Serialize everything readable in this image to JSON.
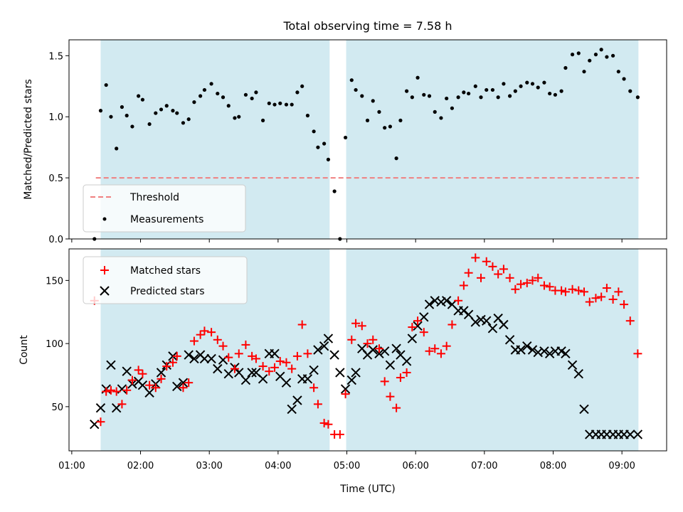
{
  "chart_data": [
    {
      "type": "scatter",
      "title": "Total observing time = 7.58 h",
      "ylabel": "Matched/Predicted stars",
      "xlabel": "",
      "xlim": [
        0.96,
        9.65
      ],
      "ylim": [
        0,
        1.63
      ],
      "yticks": [
        0.0,
        0.5,
        1.0,
        1.5
      ],
      "ytick_labels": [
        "0.0",
        "0.5",
        "1.0",
        "1.5"
      ],
      "xticks": [
        1,
        2,
        3,
        4,
        5,
        6,
        7,
        8,
        9
      ],
      "shaded_spans": [
        [
          1.42,
          4.75
        ],
        [
          4.99,
          9.24
        ]
      ],
      "shade_color": "#add8e6",
      "threshold": {
        "name": "Threshold",
        "value": 0.5,
        "x_range": [
          1.35,
          9.25
        ],
        "color": "#f08080"
      },
      "legend": {
        "placement": "lower-left",
        "entries": [
          "Threshold",
          "Measurements"
        ]
      },
      "series": [
        {
          "name": "Measurements",
          "color": "#000000",
          "marker": "dot",
          "x": [
            1.33,
            1.42,
            1.5,
            1.57,
            1.65,
            1.73,
            1.8,
            1.88,
            1.97,
            2.03,
            2.13,
            2.22,
            2.3,
            2.38,
            2.47,
            2.53,
            2.62,
            2.7,
            2.78,
            2.87,
            2.93,
            3.03,
            3.12,
            3.2,
            3.28,
            3.37,
            3.43,
            3.53,
            3.62,
            3.68,
            3.78,
            3.87,
            3.95,
            4.03,
            4.12,
            4.2,
            4.28,
            4.35,
            4.43,
            4.52,
            4.58,
            4.67,
            4.73,
            4.82,
            4.9,
            4.98,
            5.07,
            5.13,
            5.22,
            5.3,
            5.38,
            5.47,
            5.55,
            5.63,
            5.72,
            5.78,
            5.87,
            5.95,
            6.03,
            6.12,
            6.2,
            6.28,
            6.37,
            6.45,
            6.53,
            6.62,
            6.7,
            6.77,
            6.87,
            6.95,
            7.03,
            7.12,
            7.2,
            7.28,
            7.37,
            7.45,
            7.53,
            7.62,
            7.7,
            7.78,
            7.87,
            7.95,
            8.03,
            8.12,
            8.18,
            8.28,
            8.37,
            8.45,
            8.53,
            8.62,
            8.7,
            8.78,
            8.87,
            8.95,
            9.03,
            9.12,
            9.23
          ],
          "y": [
            0.0,
            1.05,
            1.26,
            1.0,
            0.74,
            1.08,
            1.01,
            0.92,
            1.17,
            1.14,
            0.94,
            1.03,
            1.06,
            1.09,
            1.05,
            1.03,
            0.95,
            0.98,
            1.12,
            1.17,
            1.22,
            1.27,
            1.19,
            1.16,
            1.09,
            0.99,
            1.0,
            1.18,
            1.15,
            1.2,
            0.97,
            1.11,
            1.1,
            1.11,
            1.1,
            1.1,
            1.2,
            1.25,
            1.01,
            0.88,
            0.75,
            0.78,
            0.65,
            0.39,
            0.0,
            0.83,
            1.3,
            1.22,
            1.17,
            0.97,
            1.13,
            1.04,
            0.91,
            0.92,
            0.66,
            0.97,
            1.21,
            1.16,
            1.32,
            1.18,
            1.17,
            1.04,
            0.99,
            1.15,
            1.07,
            1.16,
            1.2,
            1.19,
            1.25,
            1.16,
            1.22,
            1.22,
            1.16,
            1.27,
            1.17,
            1.21,
            1.25,
            1.28,
            1.27,
            1.24,
            1.28,
            1.19,
            1.18,
            1.21,
            1.4,
            1.51,
            1.52,
            1.37,
            1.46,
            1.51,
            1.55,
            1.49,
            1.5,
            1.37,
            1.31,
            1.21,
            1.16
          ]
        }
      ]
    },
    {
      "type": "scatter",
      "title": "",
      "ylabel": "Count",
      "xlabel": "Time (UTC)",
      "xlim": [
        0.96,
        9.65
      ],
      "ylim": [
        15,
        175
      ],
      "yticks": [
        50,
        100,
        150
      ],
      "ytick_labels": [
        "50",
        "100",
        "150"
      ],
      "xticks": [
        1,
        2,
        3,
        4,
        5,
        6,
        7,
        8,
        9
      ],
      "xtick_labels": [
        "01:00",
        "02:00",
        "03:00",
        "04:00",
        "05:00",
        "06:00",
        "07:00",
        "08:00",
        "09:00"
      ],
      "shaded_spans": [
        [
          1.42,
          4.75
        ],
        [
          4.99,
          9.24
        ]
      ],
      "shade_color": "#add8e6",
      "legend": {
        "placement": "upper-left",
        "entries": [
          "Matched stars",
          "Predicted stars"
        ]
      },
      "series": [
        {
          "name": "Matched stars",
          "color": "#ff0000",
          "marker": "plus",
          "x": [
            1.33,
            1.42,
            1.5,
            1.57,
            1.65,
            1.73,
            1.8,
            1.88,
            1.97,
            2.03,
            2.13,
            2.22,
            2.3,
            2.38,
            2.47,
            2.53,
            2.62,
            2.7,
            2.78,
            2.87,
            2.93,
            3.03,
            3.12,
            3.2,
            3.28,
            3.37,
            3.43,
            3.53,
            3.62,
            3.68,
            3.78,
            3.87,
            3.95,
            4.03,
            4.12,
            4.2,
            4.28,
            4.35,
            4.43,
            4.52,
            4.58,
            4.67,
            4.73,
            4.82,
            4.9,
            4.98,
            5.07,
            5.13,
            5.22,
            5.3,
            5.38,
            5.47,
            5.55,
            5.63,
            5.72,
            5.78,
            5.87,
            5.95,
            6.03,
            6.12,
            6.2,
            6.28,
            6.37,
            6.45,
            6.53,
            6.62,
            6.7,
            6.77,
            6.87,
            6.95,
            7.03,
            7.12,
            7.2,
            7.28,
            7.37,
            7.45,
            7.53,
            7.62,
            7.7,
            7.78,
            7.87,
            7.95,
            8.03,
            8.12,
            8.18,
            8.28,
            8.37,
            8.45,
            8.53,
            8.62,
            8.7,
            8.78,
            8.87,
            8.95,
            9.03,
            9.12,
            9.23
          ],
          "y": [
            134,
            38,
            62,
            63,
            62,
            52,
            63,
            71,
            79,
            76,
            67,
            65,
            72,
            82,
            85,
            90,
            65,
            69,
            102,
            107,
            110,
            109,
            103,
            98,
            89,
            80,
            92,
            99,
            90,
            88,
            82,
            78,
            81,
            86,
            85,
            80,
            90,
            115,
            92,
            65,
            52,
            37,
            36,
            28,
            28,
            60,
            103,
            116,
            114,
            100,
            103,
            96,
            70,
            58,
            49,
            73,
            77,
            113,
            118,
            109,
            94,
            96,
            92,
            98,
            115,
            134,
            146,
            156,
            168,
            152,
            165,
            161,
            155,
            159,
            152,
            143,
            147,
            148,
            150,
            152,
            146,
            145,
            142,
            142,
            141,
            143,
            142,
            141,
            133,
            136,
            137,
            144,
            135,
            141,
            131,
            118,
            92
          ]
        },
        {
          "name": "Predicted stars",
          "color": "#000000",
          "marker": "x",
          "x": [
            1.33,
            1.42,
            1.5,
            1.57,
            1.65,
            1.73,
            1.8,
            1.88,
            1.97,
            2.03,
            2.13,
            2.22,
            2.3,
            2.38,
            2.47,
            2.53,
            2.62,
            2.7,
            2.78,
            2.87,
            2.93,
            3.03,
            3.12,
            3.2,
            3.28,
            3.37,
            3.43,
            3.53,
            3.62,
            3.68,
            3.78,
            3.87,
            3.95,
            4.03,
            4.12,
            4.2,
            4.28,
            4.35,
            4.43,
            4.52,
            4.58,
            4.67,
            4.73,
            4.82,
            4.9,
            4.98,
            5.07,
            5.13,
            5.22,
            5.3,
            5.38,
            5.47,
            5.55,
            5.63,
            5.72,
            5.78,
            5.87,
            5.95,
            6.03,
            6.12,
            6.2,
            6.28,
            6.37,
            6.45,
            6.53,
            6.62,
            6.7,
            6.77,
            6.87,
            6.95,
            7.03,
            7.12,
            7.2,
            7.28,
            7.37,
            7.45,
            7.53,
            7.62,
            7.7,
            7.78,
            7.87,
            7.95,
            8.03,
            8.12,
            8.18,
            8.28,
            8.37,
            8.45,
            8.53,
            8.62,
            8.7,
            8.78,
            8.87,
            8.95,
            9.03,
            9.12,
            9.23
          ],
          "y": [
            36,
            49,
            64,
            83,
            49,
            64,
            78,
            68,
            70,
            67,
            61,
            68,
            77,
            83,
            90,
            66,
            69,
            91,
            88,
            91,
            88,
            88,
            80,
            87,
            76,
            81,
            77,
            71,
            77,
            77,
            72,
            92,
            92,
            74,
            69,
            48,
            55,
            72,
            72,
            79,
            95,
            98,
            104,
            91,
            77,
            64,
            71,
            77,
            96,
            91,
            95,
            92,
            94,
            83,
            96,
            91,
            86,
            104,
            114,
            121,
            131,
            134,
            133,
            134,
            131,
            126,
            126,
            123,
            117,
            119,
            118,
            112,
            120,
            115,
            103,
            95,
            95,
            98,
            95,
            93,
            94,
            92,
            94,
            94,
            92,
            83,
            76,
            48,
            28,
            28,
            28,
            28,
            28,
            28,
            28,
            28,
            28
          ]
        }
      ]
    }
  ]
}
